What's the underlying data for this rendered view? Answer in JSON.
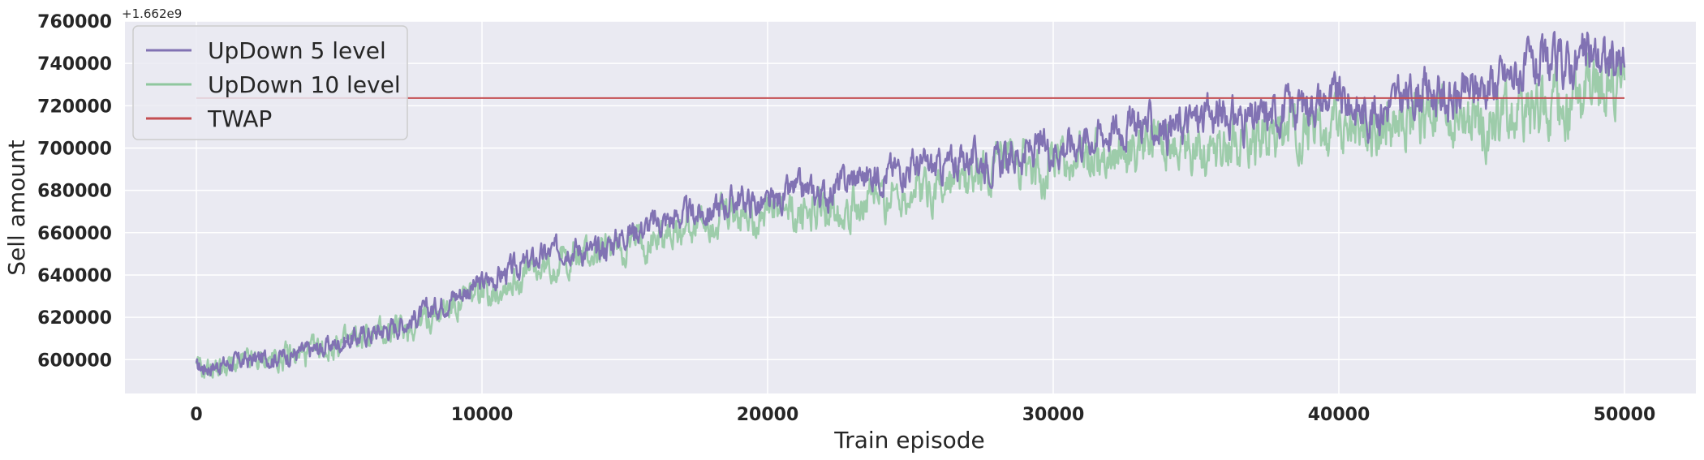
{
  "chart_data": {
    "type": "line",
    "xlabel": "Train episode",
    "ylabel": "Sell amount",
    "y_offset_text": "+1.662e9",
    "xlim": [
      -2500,
      52500
    ],
    "ylim": [
      584000,
      760000
    ],
    "x_ticks": [
      0,
      10000,
      20000,
      30000,
      40000,
      50000
    ],
    "x_tick_labels": [
      "0",
      "10000",
      "20000",
      "30000",
      "40000",
      "50000"
    ],
    "y_ticks": [
      600000,
      620000,
      640000,
      660000,
      680000,
      700000,
      720000,
      740000,
      760000
    ],
    "y_tick_labels": [
      "600000",
      "620000",
      "640000",
      "660000",
      "680000",
      "700000",
      "720000",
      "740000",
      "760000"
    ],
    "grid": true,
    "legend_position": "top-left",
    "series": [
      {
        "name": "UpDown 5 level",
        "color": "#8172b3",
        "x": [
          0,
          1000,
          2000,
          3000,
          4000,
          5000,
          6000,
          7000,
          8000,
          9000,
          10000,
          11000,
          12000,
          13000,
          14000,
          15000,
          16000,
          17000,
          18000,
          19000,
          20000,
          21000,
          22000,
          23000,
          24000,
          25000,
          26000,
          27000,
          28000,
          29000,
          30000,
          31000,
          32000,
          33000,
          34000,
          35000,
          36000,
          37000,
          38000,
          39000,
          40000,
          41000,
          42000,
          43000,
          44000,
          45000,
          46000,
          47000,
          48000,
          49000,
          50000
        ],
        "values": [
          596000,
          598000,
          600000,
          602000,
          604000,
          608000,
          612000,
          616000,
          622000,
          630000,
          636000,
          642000,
          648000,
          654000,
          650000,
          660000,
          664000,
          668000,
          670000,
          676000,
          672000,
          680000,
          678000,
          686000,
          688000,
          692000,
          690000,
          696000,
          692000,
          698000,
          700000,
          704000,
          708000,
          712000,
          708000,
          714000,
          716000,
          712000,
          718000,
          722000,
          724000,
          716000,
          722000,
          728000,
          722000,
          730000,
          734000,
          738000,
          740000,
          744000,
          738000
        ]
      },
      {
        "name": "UpDown 10 level",
        "color": "#8fc79e",
        "x": [
          0,
          1000,
          2000,
          3000,
          4000,
          5000,
          6000,
          7000,
          8000,
          9000,
          10000,
          11000,
          12000,
          13000,
          14000,
          15000,
          16000,
          17000,
          18000,
          19000,
          20000,
          21000,
          22000,
          23000,
          24000,
          25000,
          26000,
          27000,
          28000,
          29000,
          30000,
          31000,
          32000,
          33000,
          34000,
          35000,
          36000,
          37000,
          38000,
          39000,
          40000,
          41000,
          42000,
          43000,
          44000,
          45000,
          46000,
          47000,
          48000,
          49000,
          50000
        ],
        "values": [
          595000,
          597000,
          599000,
          601000,
          603000,
          607000,
          611000,
          614000,
          619000,
          626000,
          632000,
          637000,
          642000,
          648000,
          650000,
          654000,
          658000,
          662000,
          666000,
          668000,
          670000,
          668000,
          672000,
          674000,
          676000,
          680000,
          682000,
          684000,
          688000,
          690000,
          692000,
          694000,
          698000,
          700000,
          702000,
          700000,
          704000,
          706000,
          704000,
          708000,
          710000,
          710000,
          712000,
          716000,
          714000,
          712000,
          716000,
          718000,
          718000,
          726000,
          732000
        ]
      },
      {
        "name": "TWAP",
        "color": "#c44e52",
        "x": [
          0,
          50000
        ],
        "values": [
          723600,
          723600
        ]
      }
    ]
  }
}
